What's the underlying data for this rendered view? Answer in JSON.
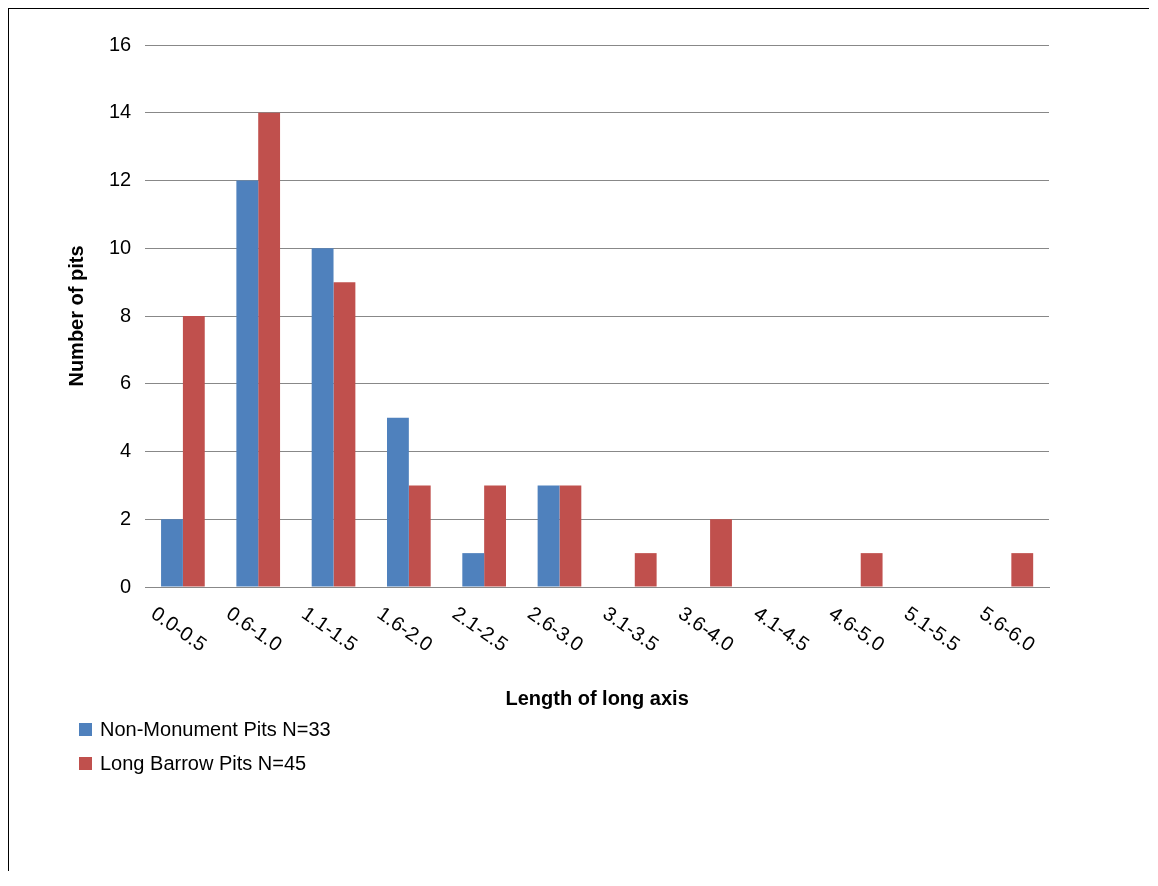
{
  "chart_data": {
    "type": "bar",
    "xlabel": "Length of long axis",
    "ylabel": "Number of pits",
    "categories": [
      "0.0-0.5",
      "0.6-1.0",
      "1.1-1.5",
      "1.6-2.0",
      "2.1-2.5",
      "2.6-3.0",
      "3.1-3.5",
      "3.6-4.0",
      "4.1-4.5",
      "4.6-5.0",
      "5.1-5.5",
      "5.6-6.0"
    ],
    "series": [
      {
        "name": "Non-Monument Pits N=33",
        "color": "#4f81bd",
        "values": [
          2,
          12,
          10,
          5,
          1,
          3,
          0,
          0,
          0,
          0,
          0,
          0
        ]
      },
      {
        "name": "Long Barrow Pits  N=45",
        "color": "#c0504d",
        "values": [
          8,
          14,
          9,
          3,
          3,
          3,
          1,
          2,
          0,
          1,
          0,
          1
        ]
      }
    ],
    "ylim": [
      0,
      16
    ],
    "yticks": [
      0,
      2,
      4,
      6,
      8,
      10,
      12,
      14,
      16
    ],
    "grid": "y",
    "legend": "bottom left"
  }
}
